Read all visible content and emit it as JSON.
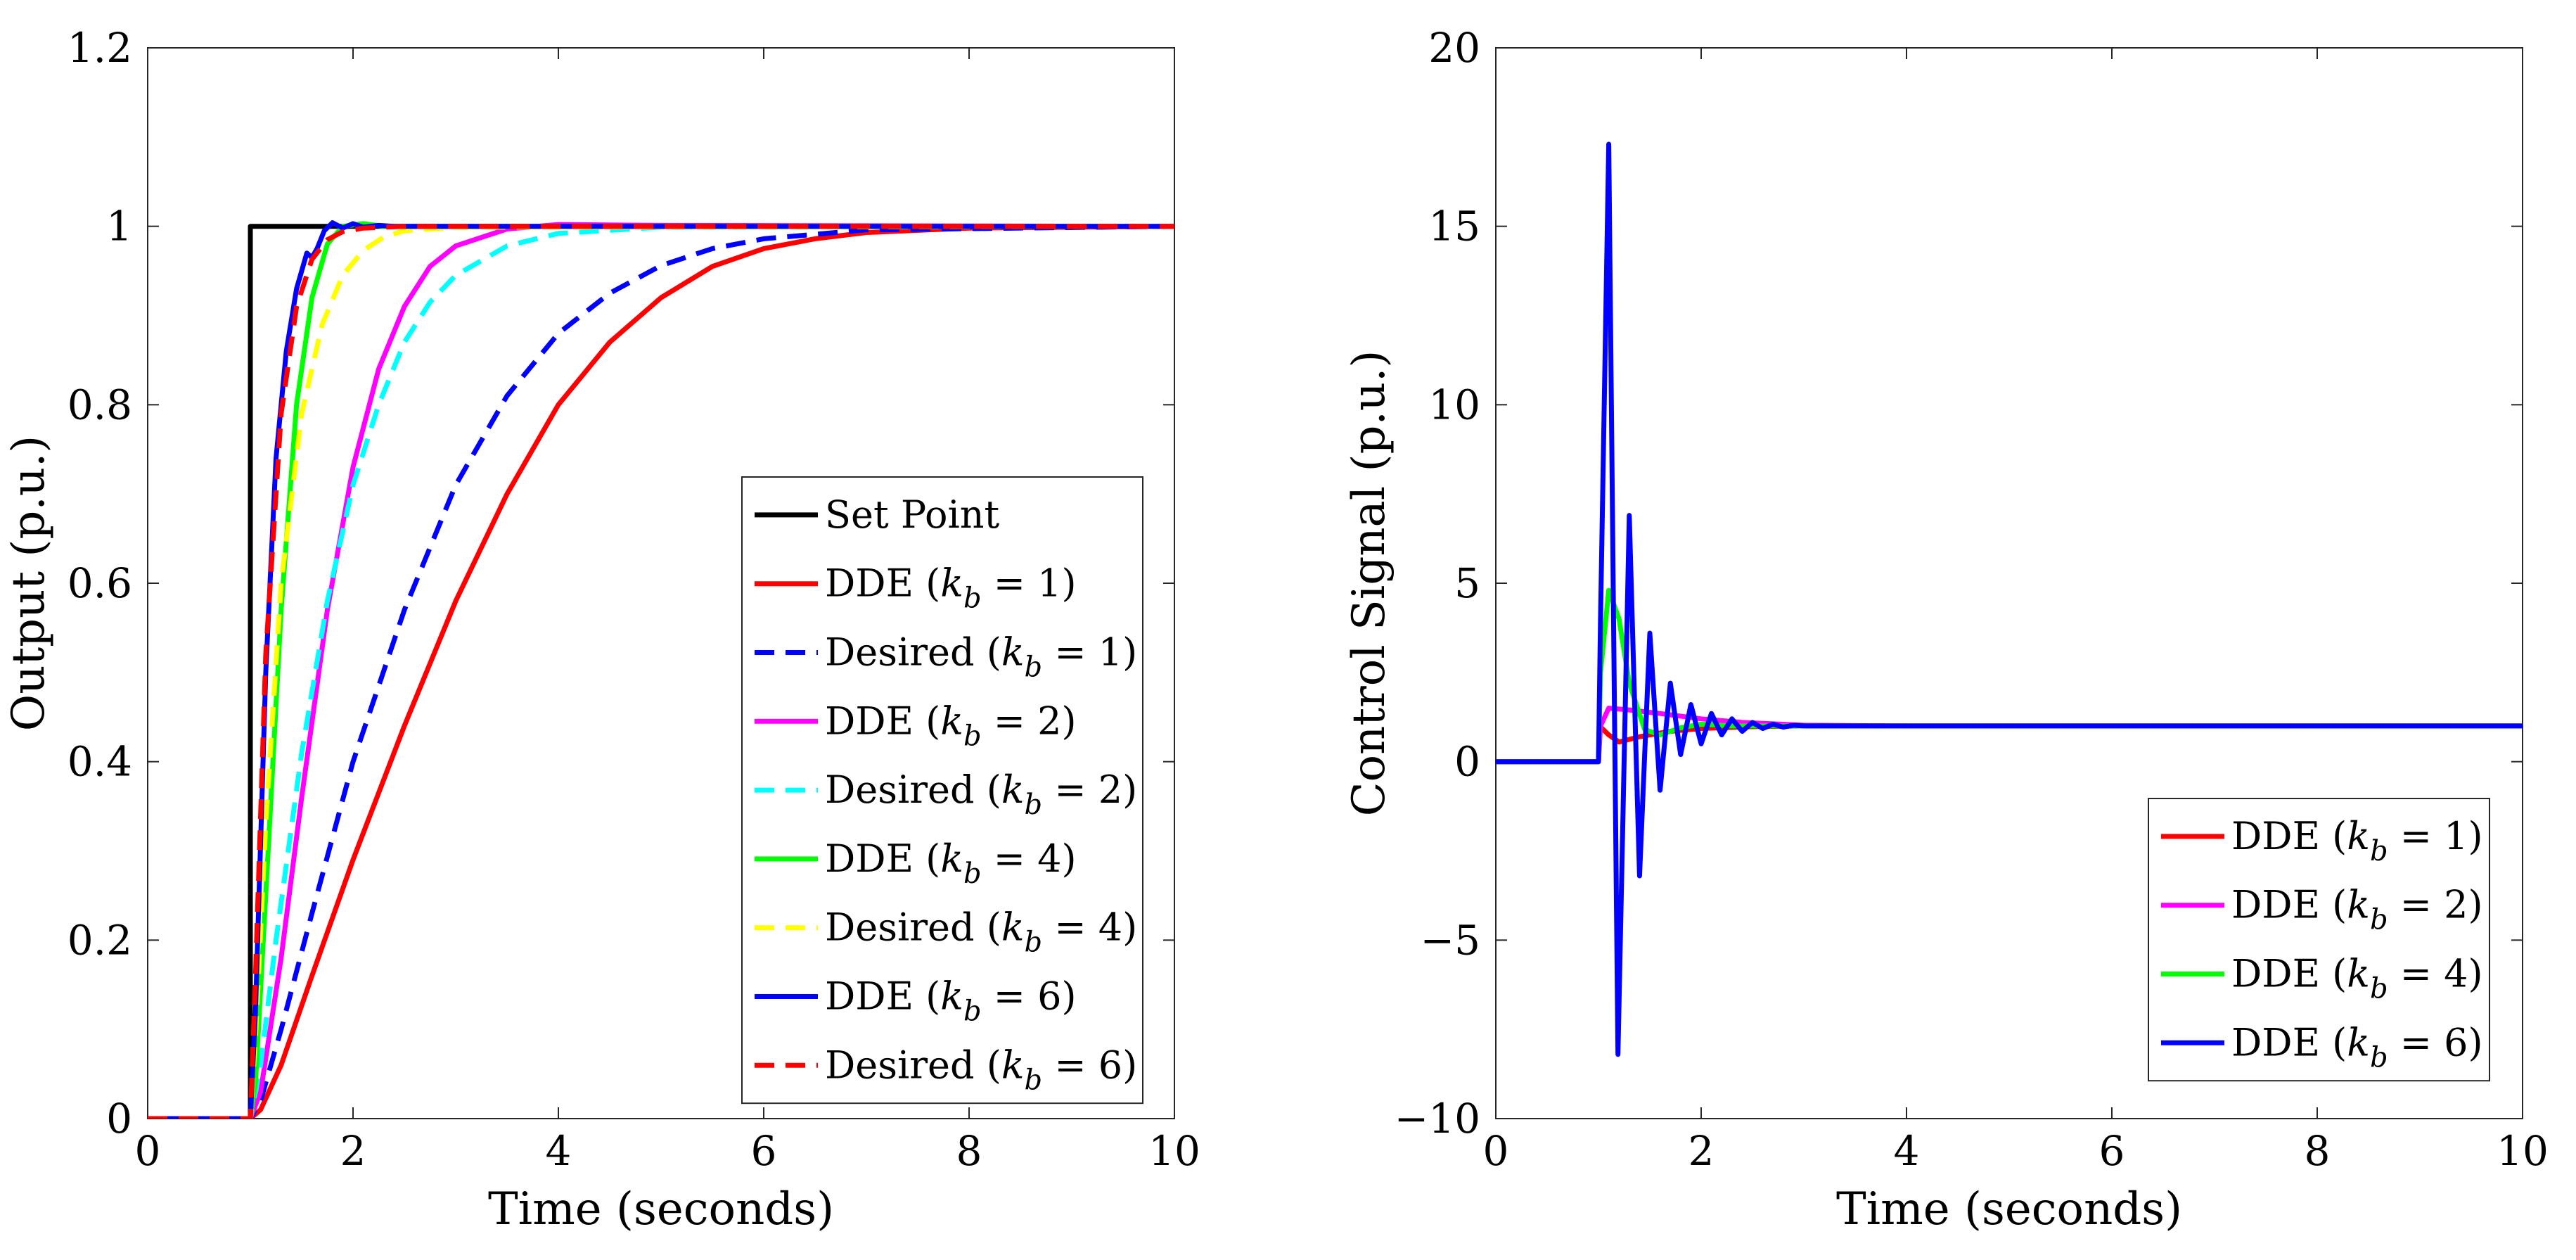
{
  "chart_data": [
    {
      "type": "line",
      "title": "",
      "xlabel": "Time (seconds)",
      "ylabel": "Output (p.u.)",
      "xlim": [
        0,
        10
      ],
      "ylim": [
        0,
        1.2
      ],
      "xticks": [
        0,
        2,
        4,
        6,
        8,
        10
      ],
      "yticks": [
        0,
        0.2,
        0.4,
        0.6,
        0.8,
        1,
        1.2
      ],
      "xtick_labels": [
        "0",
        "2",
        "4",
        "6",
        "8",
        "10"
      ],
      "ytick_labels": [
        "0",
        "0.2",
        "0.4",
        "0.6",
        "0.8",
        "1",
        "1.2"
      ],
      "grid": false,
      "legend_position": "lower-right",
      "series": [
        {
          "name": "Set Point",
          "legend_base": "Set Point",
          "legend_sub": "",
          "legend_tail": "",
          "color": "#000000",
          "dash": false,
          "x": [
            0,
            1,
            1,
            10
          ],
          "y": [
            0,
            0,
            1,
            1
          ]
        },
        {
          "name": "DDE (k_b = 1)",
          "legend_base": "DDE (",
          "legend_sub": "b",
          "legend_tail": " = 1)",
          "color": "#ff0000",
          "dash": false,
          "x": [
            0,
            1,
            1.1,
            1.3,
            1.6,
            2,
            2.5,
            3,
            3.5,
            4,
            4.5,
            5,
            5.5,
            6,
            6.5,
            7,
            8,
            10
          ],
          "y": [
            0,
            0,
            0.01,
            0.06,
            0.16,
            0.29,
            0.44,
            0.58,
            0.7,
            0.8,
            0.87,
            0.92,
            0.955,
            0.975,
            0.986,
            0.993,
            0.998,
            1
          ]
        },
        {
          "name": "Desired (k_b = 1)",
          "legend_base": "Desired (",
          "legend_sub": "b",
          "legend_tail": " = 1)",
          "color": "#0000ff",
          "dash": true,
          "x": [
            0,
            1,
            1.1,
            1.3,
            1.6,
            2,
            2.5,
            3,
            3.5,
            4,
            4.5,
            5,
            5.5,
            6,
            7,
            10
          ],
          "y": [
            0,
            0,
            0.02,
            0.1,
            0.23,
            0.4,
            0.57,
            0.71,
            0.81,
            0.88,
            0.925,
            0.956,
            0.975,
            0.986,
            0.996,
            1
          ]
        },
        {
          "name": "DDE (k_b = 2)",
          "legend_base": "DDE (",
          "legend_sub": "b",
          "legend_tail": " = 2)",
          "color": "#ff00ff",
          "dash": false,
          "x": [
            0,
            1,
            1.1,
            1.3,
            1.5,
            1.75,
            2,
            2.25,
            2.5,
            2.75,
            3,
            3.5,
            4,
            5,
            10
          ],
          "y": [
            0,
            0,
            0.03,
            0.18,
            0.36,
            0.57,
            0.73,
            0.84,
            0.91,
            0.955,
            0.978,
            0.997,
            1.002,
            1.001,
            1
          ]
        },
        {
          "name": "Desired (k_b = 2)",
          "legend_base": "Desired (",
          "legend_sub": "b",
          "legend_tail": " = 2)",
          "color": "#00ffff",
          "dash": true,
          "x": [
            0,
            1,
            1.1,
            1.25,
            1.5,
            1.75,
            2,
            2.25,
            2.5,
            2.75,
            3,
            3.5,
            4,
            5,
            10
          ],
          "y": [
            0,
            0,
            0.06,
            0.2,
            0.41,
            0.58,
            0.71,
            0.8,
            0.87,
            0.915,
            0.945,
            0.978,
            0.992,
            0.999,
            1
          ]
        },
        {
          "name": "DDE (k_b = 4)",
          "legend_base": "DDE (",
          "legend_sub": "b",
          "legend_tail": " = 4)",
          "color": "#00ff00",
          "dash": false,
          "x": [
            0,
            1,
            1.05,
            1.15,
            1.3,
            1.45,
            1.6,
            1.75,
            1.9,
            2.1,
            2.3,
            3,
            10
          ],
          "y": [
            0,
            0,
            0.04,
            0.25,
            0.57,
            0.8,
            0.92,
            0.98,
            1.0,
            1.003,
            1.0,
            1.0,
            1.0
          ]
        },
        {
          "name": "Desired (k_b = 4)",
          "legend_base": "Desired (",
          "legend_sub": "b",
          "legend_tail": " = 4)",
          "color": "#ffff00",
          "dash": true,
          "x": [
            0,
            1,
            1.05,
            1.15,
            1.3,
            1.5,
            1.7,
            1.9,
            2.1,
            2.3,
            2.5,
            3,
            10
          ],
          "y": [
            0,
            0,
            0.09,
            0.33,
            0.6,
            0.79,
            0.89,
            0.945,
            0.973,
            0.988,
            0.995,
            0.999,
            1.0
          ]
        },
        {
          "name": "DDE (k_b = 6)",
          "legend_base": "DDE (",
          "legend_sub": "b",
          "legend_tail": " = 6)",
          "color": "#0000ff",
          "dash": false,
          "x": [
            0,
            1,
            1.05,
            1.15,
            1.25,
            1.35,
            1.45,
            1.55,
            1.6,
            1.65,
            1.72,
            1.8,
            1.9,
            2.0,
            2.1,
            2.25,
            2.4,
            2.6,
            3,
            10
          ],
          "y": [
            0,
            0,
            0.12,
            0.5,
            0.74,
            0.86,
            0.93,
            0.97,
            0.965,
            0.975,
            0.995,
            1.004,
            0.998,
            1.003,
            0.999,
            1.001,
            1.0,
            1.0,
            1.0,
            1.0
          ]
        },
        {
          "name": "Desired (k_b = 6)",
          "legend_base": "Desired (",
          "legend_sub": "b",
          "legend_tail": " = 6)",
          "color": "#ff0000",
          "dash": true,
          "x": [
            0,
            1,
            1.05,
            1.15,
            1.3,
            1.45,
            1.6,
            1.75,
            1.9,
            2.1,
            2.3,
            2.5,
            10
          ],
          "y": [
            0,
            0,
            0.16,
            0.52,
            0.79,
            0.91,
            0.963,
            0.985,
            0.994,
            0.998,
            0.999,
            1.0,
            1.0
          ]
        }
      ]
    },
    {
      "type": "line",
      "title": "",
      "xlabel": "Time (seconds)",
      "ylabel": "Control Signal (p.u.)",
      "xlim": [
        0,
        10
      ],
      "ylim": [
        -10,
        20
      ],
      "xticks": [
        0,
        2,
        4,
        6,
        8,
        10
      ],
      "yticks": [
        -10,
        -5,
        0,
        5,
        10,
        15,
        20
      ],
      "xtick_labels": [
        "0",
        "2",
        "4",
        "6",
        "8",
        "10"
      ],
      "ytick_labels": [
        "−10",
        "−5",
        "0",
        "5",
        "10",
        "15",
        "20"
      ],
      "grid": false,
      "legend_position": "lower-right",
      "series": [
        {
          "name": "DDE (k_b = 1)",
          "legend_base": "DDE (",
          "legend_sub": "b",
          "legend_tail": " = 1)",
          "color": "#ff0000",
          "dash": false,
          "x": [
            0,
            1,
            1.01,
            1.1,
            1.2,
            1.4,
            1.7,
            2.0,
            2.5,
            3,
            4,
            10
          ],
          "y": [
            0,
            0,
            1.0,
            0.75,
            0.55,
            0.7,
            0.85,
            0.93,
            0.98,
            1.0,
            1.0,
            1.0
          ]
        },
        {
          "name": "DDE (k_b = 2)",
          "legend_base": "DDE (",
          "legend_sub": "b",
          "legend_tail": " = 2)",
          "color": "#ff00ff",
          "dash": false,
          "x": [
            0,
            1,
            1.02,
            1.1,
            1.3,
            1.6,
            2.0,
            2.4,
            3,
            4,
            10
          ],
          "y": [
            0,
            0,
            1.0,
            1.5,
            1.45,
            1.35,
            1.2,
            1.1,
            1.02,
            1.0,
            1.0
          ]
        },
        {
          "name": "DDE (k_b = 4)",
          "legend_base": "DDE (",
          "legend_sub": "b",
          "legend_tail": " = 4)",
          "color": "#00ff00",
          "dash": false,
          "x": [
            0,
            1,
            1.02,
            1.1,
            1.2,
            1.3,
            1.45,
            1.6,
            1.8,
            2.0,
            2.3,
            3,
            10
          ],
          "y": [
            0,
            0,
            2.5,
            4.8,
            4.0,
            2.2,
            0.9,
            0.75,
            0.95,
            1.05,
            1.0,
            1.0,
            1.0
          ]
        },
        {
          "name": "DDE (k_b = 6)",
          "legend_base": "DDE (",
          "legend_sub": "b",
          "legend_tail": " = 6)",
          "color": "#0000ff",
          "dash": false,
          "x": [
            0,
            1,
            1.02,
            1.1,
            1.19,
            1.3,
            1.4,
            1.5,
            1.6,
            1.7,
            1.8,
            1.9,
            2.0,
            2.1,
            2.2,
            2.3,
            2.4,
            2.5,
            2.6,
            2.7,
            2.8,
            2.9,
            3.0,
            3.2,
            4,
            10
          ],
          "y": [
            0,
            0,
            4.0,
            17.3,
            -8.2,
            6.9,
            -3.2,
            3.6,
            -0.8,
            2.2,
            0.2,
            1.6,
            0.5,
            1.35,
            0.75,
            1.2,
            0.85,
            1.1,
            0.93,
            1.05,
            0.97,
            1.02,
            1.0,
            1.0,
            1.0,
            1.0
          ]
        }
      ]
    }
  ]
}
